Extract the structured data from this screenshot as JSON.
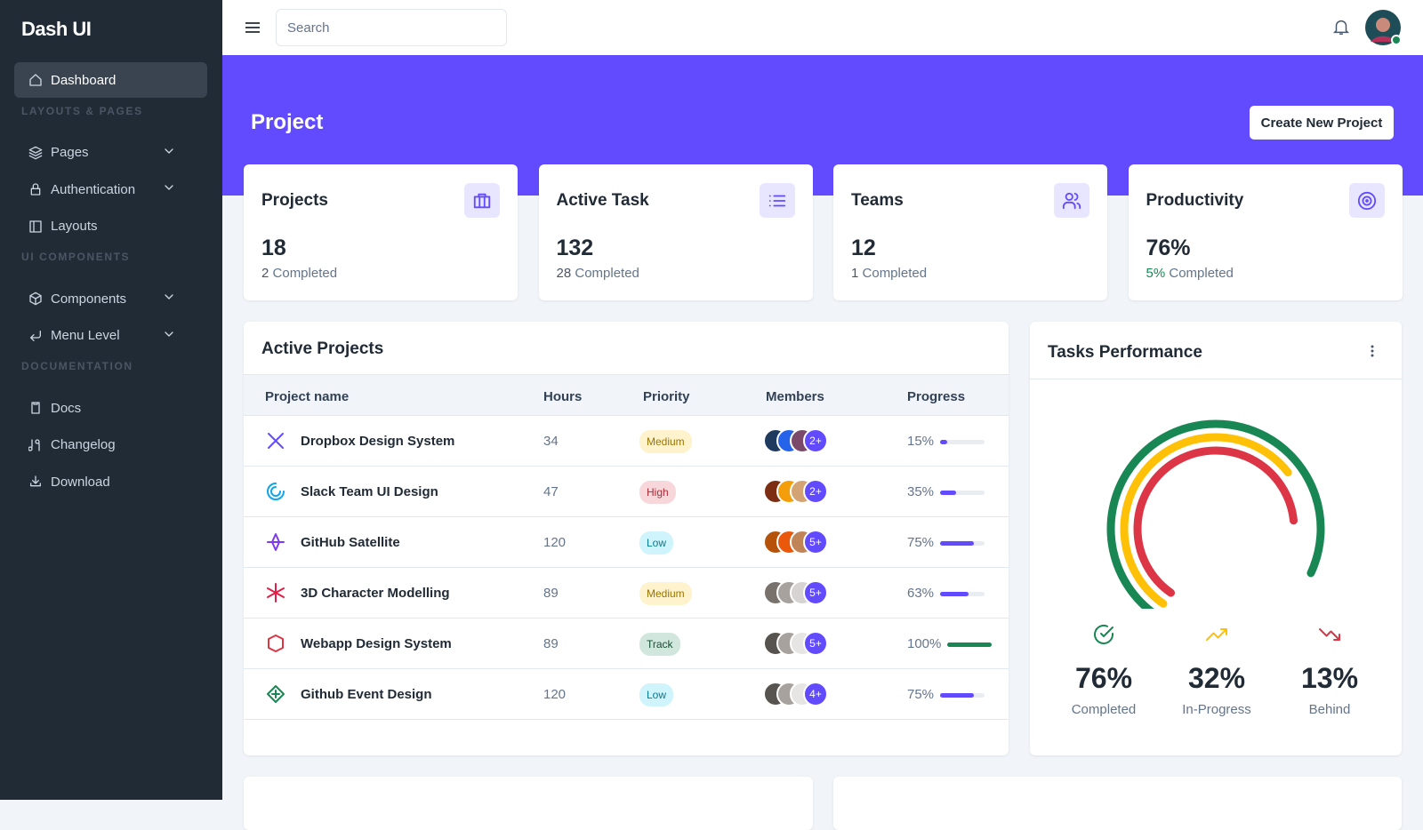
{
  "sidebar": {
    "brand": "Dash UI",
    "nav": [
      {
        "label": "Dashboard",
        "active": true
      },
      {
        "heading": "LAYOUTS & PAGES"
      },
      {
        "label": "Pages",
        "has_children": true
      },
      {
        "label": "Authentication",
        "has_children": true
      },
      {
        "label": "Layouts"
      },
      {
        "heading": "UI COMPONENTS"
      },
      {
        "label": "Components",
        "has_children": true
      },
      {
        "label": "Menu Level",
        "has_children": true
      },
      {
        "heading": "DOCUMENTATION"
      },
      {
        "label": "Docs"
      },
      {
        "label": "Changelog"
      },
      {
        "label": "Download"
      }
    ]
  },
  "topbar": {
    "search_placeholder": "Search"
  },
  "header": {
    "title": "Project",
    "button": "Create New Project"
  },
  "stats": [
    {
      "title": "Projects",
      "value": 18,
      "sub_value": "2",
      "sub_label": "Completed"
    },
    {
      "title": "Active Task",
      "value": 132,
      "sub_value": "28",
      "sub_label": "Completed"
    },
    {
      "title": "Teams",
      "value": 12,
      "sub_value": "1",
      "sub_label": "Completed"
    },
    {
      "title": "Productivity",
      "value": "76%",
      "sub_value": "5%",
      "sub_label": "Completed",
      "sub_color": "#198754"
    }
  ],
  "active_projects": {
    "title": "Active Projects",
    "columns": [
      "Project name",
      "Hours",
      "Priority",
      "Members",
      "Progress"
    ],
    "rows": [
      {
        "name": "Dropbox Design System",
        "hours": 34,
        "badge": {
          "text": "Medium",
          "bg": "#fff3cd",
          "color": "#997404"
        },
        "members_more": "2+",
        "progress": 15,
        "progress_label": "15%",
        "bar_color": "#624bff"
      },
      {
        "name": "Slack Team UI Design",
        "hours": 47,
        "badge": {
          "text": "High",
          "bg": "#f8d7da",
          "color": "#b02a37"
        },
        "members_more": "2+",
        "progress": 35,
        "progress_label": "35%",
        "bar_color": "#624bff"
      },
      {
        "name": "GitHub Satellite",
        "hours": 120,
        "badge": {
          "text": "Low",
          "bg": "#cff4fc",
          "color": "#087990"
        },
        "members_more": "5+",
        "progress": 75,
        "progress_label": "75%",
        "bar_color": "#624bff"
      },
      {
        "name": "3D Character Modelling",
        "hours": 89,
        "badge": {
          "text": "Medium",
          "bg": "#fff3cd",
          "color": "#997404"
        },
        "members_more": "5+",
        "progress": 63,
        "progress_label": "63%",
        "bar_color": "#624bff"
      },
      {
        "name": "Webapp Design System",
        "hours": 89,
        "badge": {
          "text": "Track",
          "bg": "#d1e7dd",
          "color": "#0f5132"
        },
        "members_more": "5+",
        "progress": 100,
        "progress_label": "100%",
        "bar_color": "#198754"
      },
      {
        "name": "Github Event Design",
        "hours": 120,
        "badge": {
          "text": "Low",
          "bg": "#cff4fc",
          "color": "#087990"
        },
        "members_more": "4+",
        "progress": 75,
        "progress_label": "75%",
        "bar_color": "#624bff"
      }
    ]
  },
  "tasks_performance": {
    "title": "Tasks Performance",
    "stats": [
      {
        "value": "76%",
        "label": "Completed",
        "color": "#198754"
      },
      {
        "value": "32%",
        "label": "In-Progress",
        "color": "#ffc107"
      },
      {
        "value": "13%",
        "label": "Behind",
        "color": "#dc3545"
      }
    ]
  }
}
